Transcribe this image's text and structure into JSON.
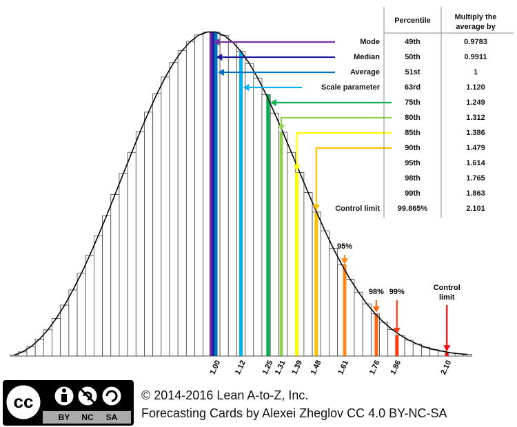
{
  "chart_data": {
    "type": "histogram",
    "bins": [
      0.02,
      0.06,
      0.1,
      0.14,
      0.18,
      0.22,
      0.26,
      0.3,
      0.34,
      0.38,
      0.42,
      0.46,
      0.5,
      0.54,
      0.58,
      0.62,
      0.66,
      0.7,
      0.74,
      0.78,
      0.82,
      0.86,
      0.9,
      0.94,
      0.98,
      1.02,
      1.06,
      1.1,
      1.14,
      1.18,
      1.22,
      1.26,
      1.3,
      1.34,
      1.38,
      1.42,
      1.46,
      1.5,
      1.54,
      1.58,
      1.62,
      1.66,
      1.7,
      1.74,
      1.78,
      1.82,
      1.86,
      1.9,
      1.94,
      1.98,
      2.02,
      2.06,
      2.1,
      2.14,
      2.18,
      2.22
    ],
    "values": [
      0.3,
      1.3,
      2.9,
      5.2,
      8.1,
      11.6,
      15.7,
      20.4,
      25.5,
      31.1,
      37.1,
      43.3,
      49.8,
      56.3,
      62.8,
      69.2,
      75.2,
      80.9,
      86.0,
      90.5,
      94.2,
      97.0,
      99.0,
      99.9,
      99.9,
      98.8,
      96.8,
      93.9,
      90.2,
      85.7,
      80.6,
      74.9,
      69.0,
      62.8,
      56.6,
      50.4,
      44.4,
      38.6,
      33.2,
      28.2,
      23.7,
      19.7,
      16.1,
      13.0,
      10.4,
      8.2,
      6.4,
      4.9,
      3.7,
      2.7,
      2.0,
      1.5,
      1.0,
      0.7,
      0.5
    ],
    "color": "#ffffff",
    "edge_color": "#444444",
    "curve_color": "#000000",
    "xlim": [
      0.02,
      2.22
    ],
    "ylim": [
      0,
      100
    ],
    "xticks": [
      {
        "value": 1,
        "label": "1.00"
      },
      1.12,
      1.25,
      1.31,
      1.39,
      1.48,
      1.61,
      1.76,
      1.86,
      {
        "value": 2.1,
        "label": "2.10"
      }
    ],
    "annotations": [
      "95%",
      "98%",
      "99%",
      "Control limit"
    ]
  },
  "table": {
    "header": [
      "Percentile",
      "Multiply the average by"
    ],
    "rows": [
      {
        "label": "Mode",
        "percentile": "49th",
        "multiplier": "0.9783",
        "color": "#7030a0"
      },
      {
        "label": "Median",
        "percentile": "50th",
        "multiplier": "0.9911",
        "color": "#1a1a9c"
      },
      {
        "label": "Average",
        "percentile": "51st",
        "multiplier": "1",
        "color": "#0070c0"
      },
      {
        "label": "Scale parameter",
        "percentile": "63rd",
        "multiplier": "1.120",
        "color": "#00b0f0"
      },
      {
        "percentile": "75th",
        "multiplier": "1.249",
        "color": "#00b050"
      },
      {
        "percentile": "80th",
        "multiplier": "1.312",
        "color": "#92d050"
      },
      {
        "percentile": "85th",
        "multiplier": "1.386",
        "color": "#ffff00"
      },
      {
        "percentile": "90th",
        "multiplier": "1.479",
        "color": "#ffc000"
      },
      {
        "percentile": "95th",
        "multiplier": "1.614",
        "color": "#ff8a1c"
      },
      {
        "percentile": "98th",
        "multiplier": "1.765",
        "color": "#ff6610"
      },
      {
        "percentile": "99th",
        "multiplier": "1.863",
        "color": "#ff3a10"
      },
      {
        "label": "Control limit",
        "percentile": "99.865%",
        "multiplier": "2.101",
        "color": "#ff0000"
      }
    ]
  },
  "footer": {
    "logo": [
      "cc",
      "BY",
      "NC",
      "SA"
    ],
    "lines": [
      "© 2014-2016 Lean A-to-Z, Inc.",
      "Forecasting Cards by Alexei Zheglov CC 4.0 BY-NC-SA"
    ]
  }
}
